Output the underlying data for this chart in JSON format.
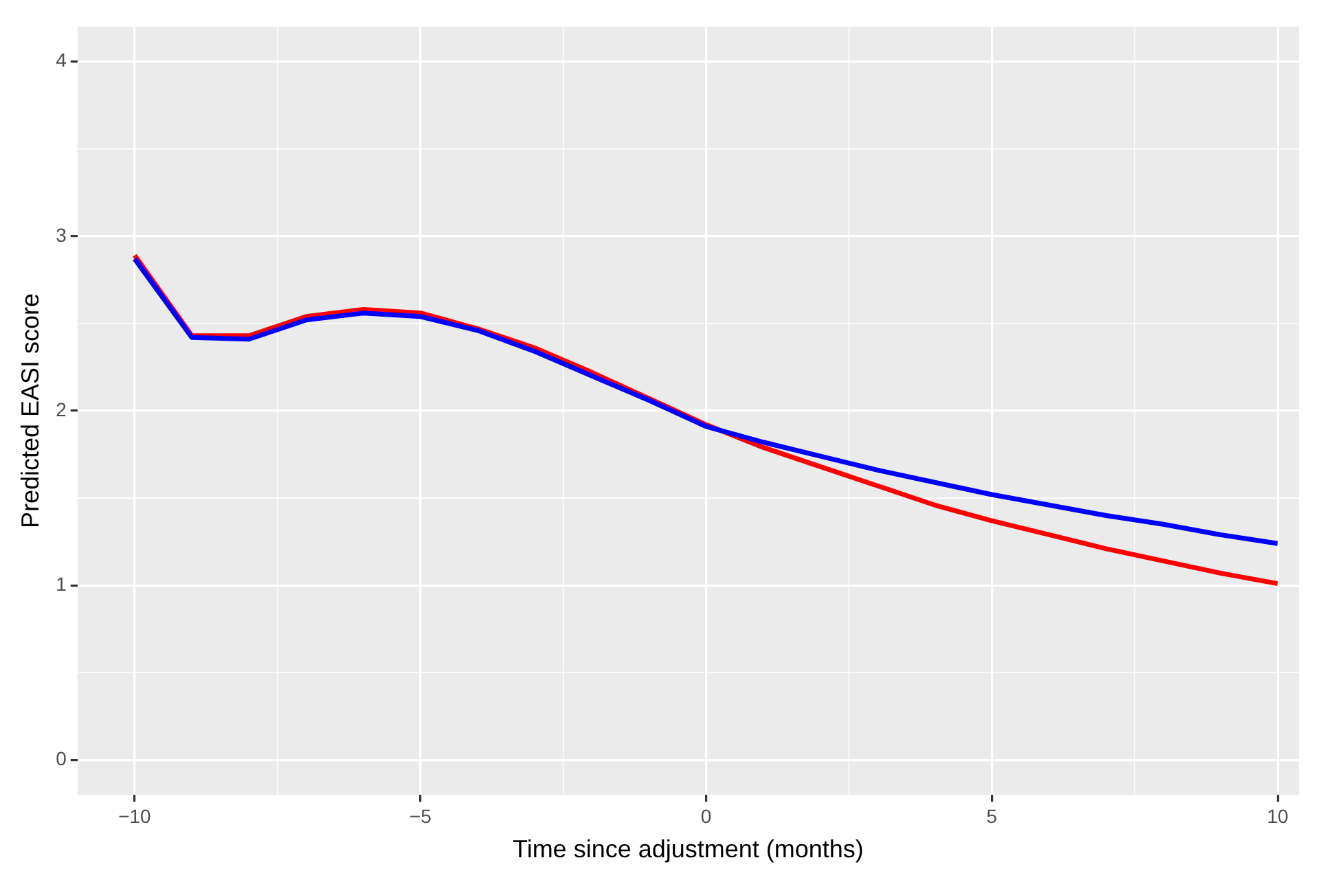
{
  "chart_data": {
    "type": "line",
    "xlabel": "Time since adjustment (months)",
    "ylabel": "Predicted EASI score",
    "x": [
      -10,
      -9,
      -8,
      -7,
      -6,
      -5,
      -4,
      -3,
      -2,
      -1,
      0,
      1,
      2,
      3,
      4,
      5,
      6,
      7,
      8,
      9,
      10
    ],
    "series": [
      {
        "color": "#0000ff",
        "values": [
          2.87,
          2.42,
          2.41,
          2.52,
          2.56,
          2.54,
          2.46,
          2.34,
          2.2,
          2.06,
          1.91,
          1.82,
          1.74,
          1.66,
          1.59,
          1.52,
          1.46,
          1.4,
          1.35,
          1.29,
          1.24
        ]
      },
      {
        "color": "#ff0000",
        "values": [
          2.89,
          2.43,
          2.43,
          2.54,
          2.58,
          2.56,
          2.47,
          2.36,
          2.22,
          2.07,
          1.92,
          1.79,
          1.68,
          1.57,
          1.46,
          1.37,
          1.29,
          1.21,
          1.14,
          1.07,
          1.01
        ]
      }
    ],
    "xlim": [
      -11,
      10.37
    ],
    "xticks": [
      -10,
      -5,
      0,
      5,
      10
    ],
    "ylim": [
      -0.2,
      4.2
    ],
    "yticks": [
      0,
      1,
      2,
      3,
      4
    ],
    "grid": true,
    "legend": false,
    "marker": "none",
    "line_style": "solid"
  }
}
